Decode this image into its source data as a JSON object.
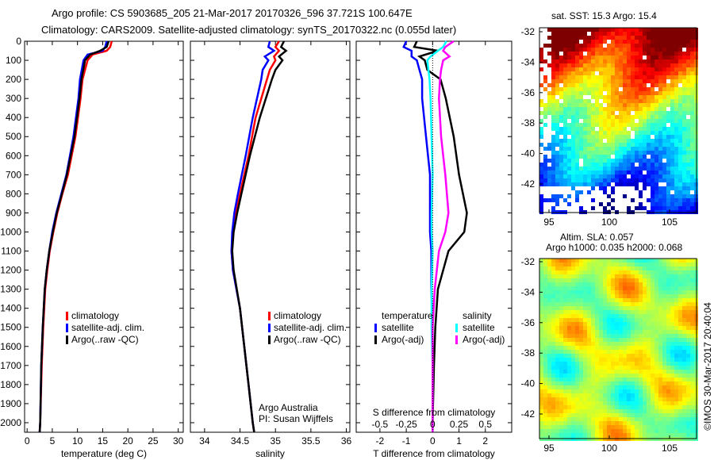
{
  "header": {
    "title1": "Argo profile: CS 5903685_205 21-Mar-2017 20170326_596 37.721S 100.647E",
    "title2": "Climatology: CARS2009. Satellite-adjusted climatology: synTS_20170322.nc (0.055d later)"
  },
  "colors": {
    "climatology": "#ff0000",
    "satellite": "#0000ff",
    "argo": "#000000",
    "sal_satellite": "#00ffff",
    "sal_argo": "#ff00ff"
  },
  "chart_data": [
    {
      "type": "line",
      "name": "temperature",
      "xlabel": "temperature (deg C)",
      "ylabel": "",
      "xlim": [
        -0.5,
        31
      ],
      "ylim": [
        2050,
        0
      ],
      "xticks": [
        0,
        5,
        10,
        15,
        20,
        25,
        30
      ],
      "yticks": [
        0,
        100,
        200,
        300,
        400,
        500,
        600,
        700,
        800,
        900,
        1000,
        1100,
        1200,
        1300,
        1400,
        1500,
        1600,
        1700,
        1800,
        1900,
        2000
      ],
      "depth": [
        0,
        30,
        50,
        70,
        100,
        200,
        300,
        500,
        700,
        800,
        900,
        1000,
        1100,
        1200,
        1300,
        1500,
        1700,
        2000,
        2050
      ],
      "series": [
        {
          "name": "climatology",
          "values": [
            16.8,
            16.5,
            15.8,
            13,
            12,
            11,
            10.6,
            9.6,
            8.1,
            7,
            6,
            5.2,
            4.5,
            4,
            3.6,
            3.2,
            2.9,
            2.6,
            2.5
          ]
        },
        {
          "name": "satellite-adj. clim.",
          "values": [
            15.8,
            15.5,
            15,
            12,
            11.2,
            10.5,
            10.2,
            9.2,
            7.8,
            6.8,
            5.8,
            5,
            4.4,
            3.9,
            3.5,
            3.1,
            2.8,
            2.6,
            2.5
          ]
        },
        {
          "name": "Argo(..raw -QC)",
          "values": [
            16.2,
            15.8,
            14.5,
            12.5,
            11.5,
            10.8,
            10.4,
            9.4,
            7.9,
            6.9,
            5.9,
            5.1,
            4.4,
            3.9,
            3.5,
            3.1,
            2.8,
            2.6,
            2.5
          ]
        }
      ],
      "legend": [
        "climatology",
        "satellite-adj. clim.",
        "Argo(..raw -QC)"
      ]
    },
    {
      "type": "line",
      "name": "salinity",
      "xlabel": "salinity",
      "xlim": [
        33.8,
        36.05
      ],
      "ylim": [
        2050,
        0
      ],
      "xticks": [
        34,
        34.5,
        35,
        35.5,
        36
      ],
      "xticklabels": [
        "34",
        "34.5",
        "35",
        "35.5",
        "36"
      ],
      "depth": [
        0,
        30,
        50,
        80,
        100,
        150,
        200,
        400,
        600,
        800,
        900,
        1000,
        1100,
        1200,
        1400,
        1600,
        1800,
        2000,
        2050
      ],
      "series": [
        {
          "name": "climatology",
          "values": [
            35.05,
            35.0,
            35.05,
            34.98,
            35.0,
            34.92,
            34.88,
            34.72,
            34.62,
            34.5,
            34.44,
            34.4,
            34.38,
            34.4,
            34.5,
            34.56,
            34.62,
            34.68,
            34.7
          ]
        },
        {
          "name": "satellite-adj. clim.",
          "values": [
            34.92,
            34.9,
            34.98,
            34.85,
            34.9,
            34.82,
            34.8,
            34.68,
            34.58,
            34.47,
            34.42,
            34.39,
            34.38,
            34.4,
            34.5,
            34.56,
            34.62,
            34.68,
            34.7
          ]
        },
        {
          "name": "Argo(..raw -QC)",
          "values": [
            35.12,
            35.08,
            35.15,
            35.05,
            35.1,
            35.0,
            34.95,
            34.78,
            34.64,
            34.52,
            34.46,
            34.41,
            34.39,
            34.41,
            34.5,
            34.56,
            34.62,
            34.68,
            34.7
          ]
        }
      ],
      "legend": [
        "climatology",
        "satellite-adj. clim.",
        "Argo(..raw -QC)"
      ],
      "annotation": [
        "Argo Australia",
        "PI: Susan Wijffels"
      ]
    },
    {
      "type": "line",
      "name": "differences",
      "xlabel": "T difference from climatology",
      "x2label": "S difference from climatology",
      "xlim": [
        -2.9,
        3.0
      ],
      "ylim": [
        2050,
        0
      ],
      "xticks": [
        -2,
        -1,
        0,
        1,
        2
      ],
      "xticks2": [
        -0.5,
        -0.25,
        0,
        0.25,
        0.5
      ],
      "x2ticklabels": [
        "-0.5",
        "-0.25",
        "0",
        "0.25",
        "0.5"
      ],
      "depth": [
        0,
        30,
        50,
        80,
        100,
        150,
        200,
        300,
        500,
        700,
        900,
        1000,
        1100,
        1300,
        1500,
        1700,
        2000,
        2050
      ],
      "series": [
        {
          "name": "temperature satellite",
          "values": [
            -1.0,
            -1.1,
            -0.8,
            -0.8,
            -0.6,
            -0.5,
            -0.4,
            -0.4,
            -0.25,
            -0.1,
            -0.1,
            -0.1,
            -0.05,
            -0.05,
            0,
            0,
            0,
            0
          ]
        },
        {
          "name": "temperature Argo(-adj)",
          "values": [
            -0.6,
            -0.7,
            0.2,
            -0.5,
            -0.3,
            -0.2,
            0.3,
            0.5,
            0.8,
            1.0,
            1.3,
            1.2,
            0.6,
            0.2,
            0.1,
            0.05,
            0,
            0
          ]
        },
        {
          "name": "salinity satellite",
          "values": [
            0.13,
            0.1,
            0.05,
            -0.02,
            -0.05,
            -0.04,
            -0.03,
            -0.02,
            -0.01,
            0,
            -0.01,
            -0.01,
            0,
            -0.01,
            -0.01,
            0,
            0,
            0
          ]
        },
        {
          "name": "salinity Argo(-adj)",
          "values": [
            0.2,
            0.12,
            0.1,
            0.16,
            0.1,
            0.08,
            0.07,
            0.06,
            0.08,
            0.12,
            0.15,
            0.12,
            0.06,
            0.02,
            0,
            0,
            0,
            0
          ]
        }
      ],
      "legend_titles": [
        "temperature",
        "salinity"
      ],
      "legend": [
        "satellite",
        "Argo(-adj)",
        "satellite",
        "Argo(-adj)"
      ]
    }
  ],
  "maps": {
    "sst_title": "sat. SST: 15.3 Argo: 15.4",
    "sla_title1": "Altim. SLA: 0.057",
    "sla_title2": "Argo h1000: 0.035 h2000: 0.068",
    "lat_ticks": [
      "-32",
      "-34",
      "-36",
      "-38",
      "-40",
      "-42"
    ],
    "lon_ticks": [
      "95",
      "100",
      "105"
    ],
    "credit": "©IMOS 30-Mar-2017 20:40:04"
  }
}
